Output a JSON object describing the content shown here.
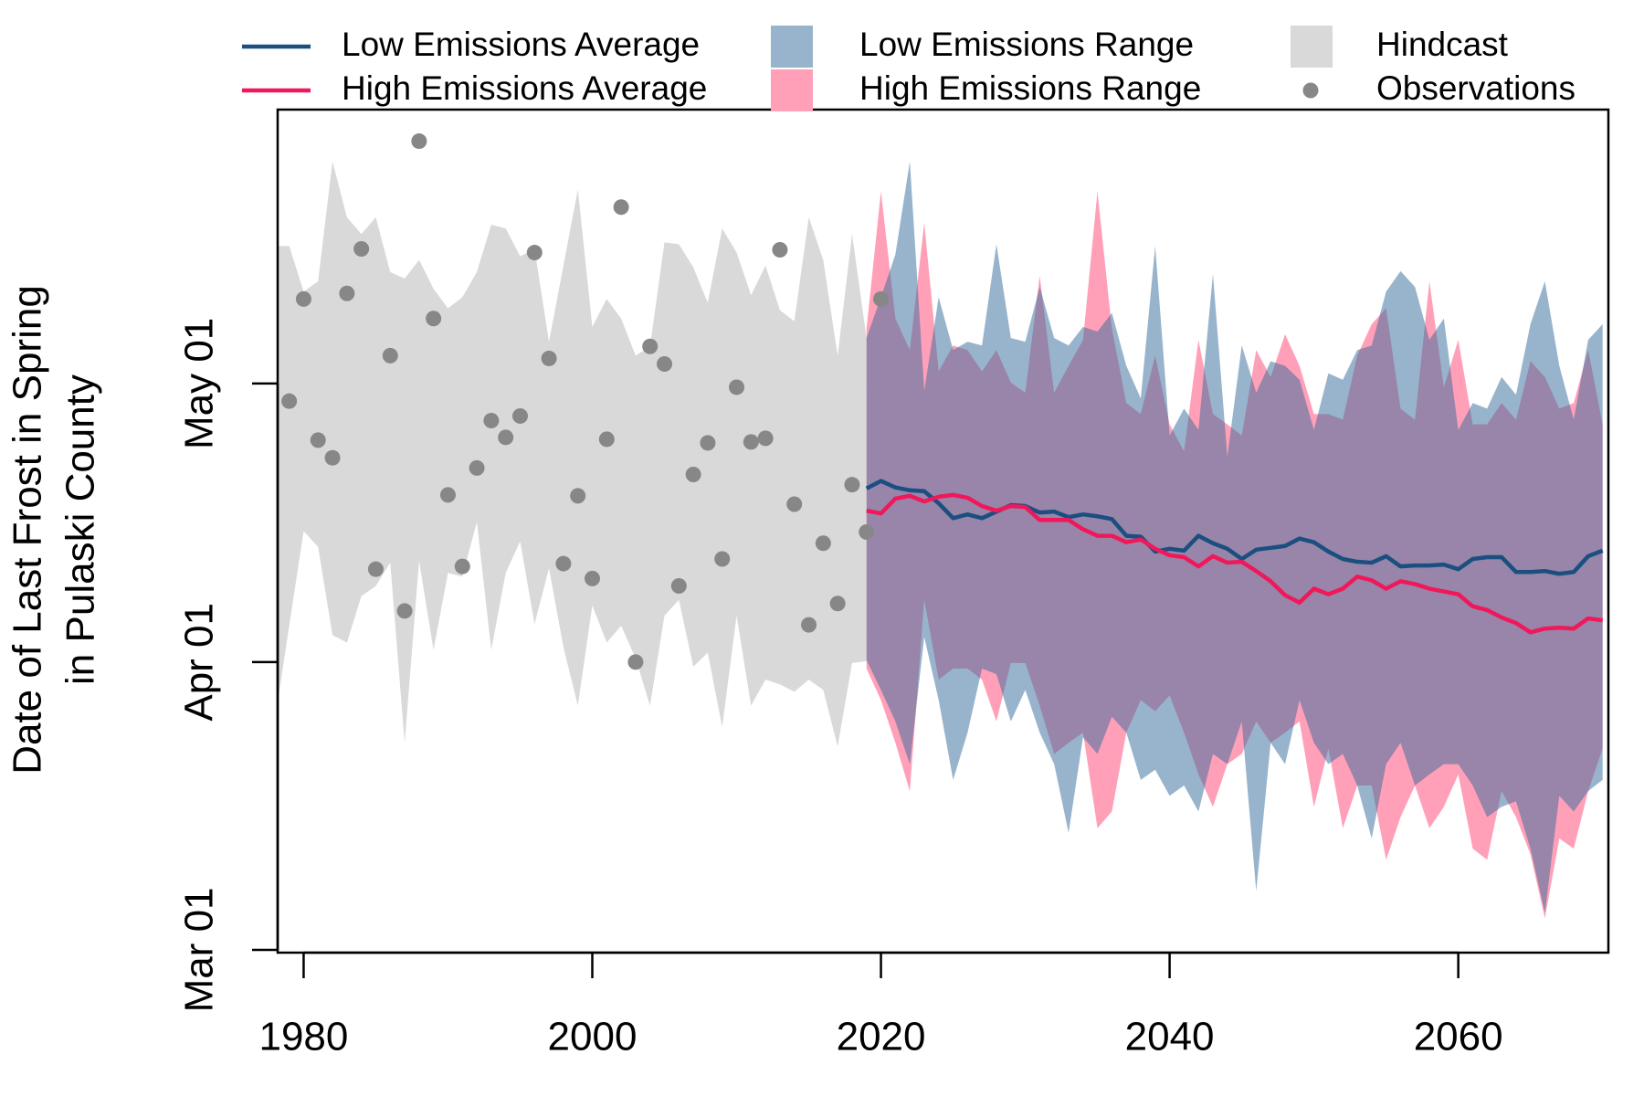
{
  "chart_data": {
    "type": "line",
    "ylabel": [
      "Date of Last Frost in Spring",
      "in Pulaski County"
    ],
    "xlim": [
      1978.2,
      2070.4
    ],
    "ylim": [
      59.7,
      150.5
    ],
    "xticks": [
      1980,
      2000,
      2020,
      2040,
      2060
    ],
    "yticks": [
      {
        "value": 60,
        "label": "Mar 01"
      },
      {
        "value": 91,
        "label": "Apr 01"
      },
      {
        "value": 121,
        "label": "May 01"
      }
    ],
    "series": [
      {
        "name": "Low Emissions Average",
        "style": "line",
        "color": "#1a4f80",
        "x": [
          2019,
          2020,
          2021,
          2022,
          2023,
          2024,
          2025,
          2026,
          2027,
          2028,
          2029,
          2030,
          2031,
          2032,
          2033,
          2034,
          2035,
          2036,
          2037,
          2038,
          2039,
          2040,
          2041,
          2042,
          2043,
          2044,
          2045,
          2046,
          2047,
          2048,
          2049,
          2050,
          2051,
          2052,
          2053,
          2054,
          2055,
          2056,
          2057,
          2058,
          2059,
          2060,
          2061,
          2062,
          2063,
          2064,
          2065,
          2066,
          2067,
          2068,
          2069,
          2070
        ],
        "values": [
          109.7,
          110.5,
          109.8,
          109.5,
          109.4,
          108.1,
          106.5,
          106.9,
          106.5,
          107.2,
          107.9,
          107.8,
          107.1,
          107.2,
          106.6,
          106.9,
          106.7,
          106.4,
          104.6,
          104.5,
          102.9,
          103.2,
          103.0,
          104.6,
          103.8,
          103.2,
          102.1,
          103.1,
          103.3,
          103.5,
          104.3,
          103.9,
          102.9,
          102.1,
          101.8,
          101.7,
          102.4,
          101.3,
          101.4,
          101.4,
          101.5,
          101.0,
          102.1,
          102.3,
          102.3,
          100.7,
          100.7,
          100.8,
          100.5,
          100.7,
          102.4,
          103.0
        ]
      },
      {
        "name": "High Emissions Average",
        "style": "line",
        "color": "#f0185a",
        "x": [
          2019,
          2020,
          2021,
          2022,
          2023,
          2024,
          2025,
          2026,
          2027,
          2028,
          2029,
          2030,
          2031,
          2032,
          2033,
          2034,
          2035,
          2036,
          2037,
          2038,
          2039,
          2040,
          2041,
          2042,
          2043,
          2044,
          2045,
          2046,
          2047,
          2048,
          2049,
          2050,
          2051,
          2052,
          2053,
          2054,
          2055,
          2056,
          2057,
          2058,
          2059,
          2060,
          2061,
          2062,
          2063,
          2064,
          2065,
          2066,
          2067,
          2068,
          2069,
          2070
        ],
        "values": [
          107.3,
          107.0,
          108.6,
          108.9,
          108.3,
          108.8,
          109.0,
          108.7,
          107.8,
          107.3,
          107.8,
          107.7,
          106.3,
          106.3,
          106.3,
          105.3,
          104.6,
          104.6,
          103.9,
          104.2,
          103.2,
          102.5,
          102.3,
          101.3,
          102.4,
          101.7,
          101.8,
          100.8,
          99.7,
          98.2,
          97.4,
          98.9,
          98.3,
          98.9,
          100.2,
          99.8,
          98.9,
          99.7,
          99.4,
          98.9,
          98.6,
          98.3,
          97.0,
          96.6,
          95.8,
          95.2,
          94.2,
          94.6,
          94.7,
          94.6,
          95.7,
          95.5
        ]
      },
      {
        "name": "Low Emissions Range",
        "style": "band",
        "color": "#316a99",
        "opacity": 0.5,
        "x": [
          2019,
          2020,
          2021,
          2022,
          2023,
          2024,
          2025,
          2026,
          2027,
          2028,
          2029,
          2030,
          2031,
          2032,
          2033,
          2034,
          2035,
          2036,
          2037,
          2038,
          2039,
          2040,
          2041,
          2042,
          2043,
          2044,
          2045,
          2046,
          2047,
          2048,
          2049,
          2050,
          2051,
          2052,
          2053,
          2054,
          2055,
          2056,
          2057,
          2058,
          2059,
          2060,
          2061,
          2062,
          2063,
          2064,
          2065,
          2066,
          2067,
          2068,
          2069,
          2070
        ],
        "upper": [
          125.9,
          130.3,
          134.9,
          144.9,
          120.2,
          130.3,
          124.6,
          125.5,
          125.1,
          136.0,
          125.9,
          125.5,
          131.4,
          125.9,
          125.1,
          127.1,
          126.6,
          128.6,
          122.9,
          119.4,
          135.8,
          115.4,
          118.3,
          116.0,
          132.8,
          113.1,
          125.1,
          120.0,
          123.4,
          122.9,
          121.4,
          116.0,
          122.1,
          121.4,
          124.6,
          125.1,
          130.9,
          133.1,
          131.4,
          125.7,
          128.0,
          116.0,
          118.9,
          118.3,
          121.7,
          119.8,
          127.4,
          132.0,
          122.9,
          117.1,
          125.7,
          127.4
        ],
        "lower": [
          91.2,
          88.0,
          84.6,
          80.0,
          93.7,
          86.9,
          78.3,
          83.4,
          90.3,
          89.7,
          84.6,
          88.0,
          83.4,
          80.0,
          72.6,
          82.9,
          81.1,
          85.1,
          83.4,
          78.3,
          79.4,
          76.6,
          77.7,
          74.9,
          81.1,
          80.0,
          84.6,
          66.3,
          82.3,
          80.0,
          86.9,
          82.3,
          80.0,
          81.1,
          77.7,
          72.0,
          80.0,
          82.3,
          77.7,
          78.9,
          80.0,
          80.0,
          77.7,
          74.3,
          75.4,
          76.0,
          70.9,
          64.0,
          76.6,
          74.9,
          77.1,
          78.3
        ]
      },
      {
        "name": "High Emissions Range",
        "style": "band",
        "color": "#ffa0b8",
        "opacity": 1,
        "x": [
          2019,
          2020,
          2021,
          2022,
          2023,
          2024,
          2025,
          2026,
          2027,
          2028,
          2029,
          2030,
          2031,
          2032,
          2033,
          2034,
          2035,
          2036,
          2037,
          2038,
          2039,
          2040,
          2041,
          2042,
          2043,
          2044,
          2045,
          2046,
          2047,
          2048,
          2049,
          2050,
          2051,
          2052,
          2053,
          2054,
          2055,
          2056,
          2057,
          2058,
          2059,
          2060,
          2061,
          2062,
          2063,
          2064,
          2065,
          2066,
          2067,
          2068,
          2069,
          2070
        ],
        "upper": [
          126.9,
          141.7,
          128.0,
          124.6,
          138.3,
          122.3,
          125.1,
          124.6,
          122.3,
          124.6,
          121.1,
          120.0,
          132.6,
          120.0,
          122.9,
          125.7,
          141.7,
          126.9,
          118.9,
          117.7,
          124.0,
          116.6,
          113.7,
          125.7,
          117.7,
          116.6,
          115.4,
          124.6,
          121.7,
          126.3,
          122.9,
          117.7,
          117.7,
          117.1,
          124.0,
          127.4,
          129.1,
          118.3,
          117.1,
          132.0,
          120.6,
          125.7,
          116.6,
          116.6,
          118.9,
          117.1,
          123.4,
          121.7,
          118.3,
          118.9,
          124.6,
          116.6
        ],
        "lower": [
          90.3,
          86.9,
          82.3,
          77.1,
          97.7,
          89.1,
          90.3,
          90.3,
          89.1,
          84.6,
          90.9,
          90.9,
          86.3,
          81.1,
          82.3,
          83.4,
          73.1,
          74.9,
          83.4,
          86.9,
          85.7,
          87.4,
          83.4,
          78.9,
          75.4,
          80.0,
          81.1,
          84.6,
          82.3,
          83.4,
          84.6,
          75.4,
          81.7,
          73.1,
          77.7,
          77.7,
          69.7,
          74.3,
          77.7,
          73.1,
          75.4,
          78.9,
          70.9,
          69.7,
          77.1,
          74.3,
          70.3,
          63.4,
          72.0,
          70.9,
          77.1,
          81.7
        ]
      },
      {
        "name": "Hindcast",
        "style": "band",
        "color": "#d9d9d9",
        "opacity": 1,
        "x": [
          1978,
          1979,
          1980,
          1981,
          1982,
          1983,
          1984,
          1985,
          1986,
          1987,
          1988,
          1989,
          1990,
          1991,
          1992,
          1993,
          1994,
          1995,
          1996,
          1997,
          1998,
          1999,
          2000,
          2001,
          2002,
          2003,
          2004,
          2005,
          2006,
          2007,
          2008,
          2009,
          2010,
          2011,
          2012,
          2013,
          2014,
          2015,
          2016,
          2017,
          2018,
          2019
        ],
        "upper": [
          135.8,
          135.8,
          130.9,
          132.0,
          144.9,
          138.9,
          137.1,
          138.9,
          133.0,
          132.3,
          134.3,
          131.2,
          129.1,
          130.3,
          133.0,
          138.1,
          137.7,
          134.7,
          135.5,
          125.5,
          133.7,
          141.9,
          127.1,
          130.1,
          128.0,
          124.0,
          125.0,
          136.2,
          136.0,
          133.5,
          129.7,
          137.7,
          135.1,
          130.5,
          133.7,
          128.9,
          127.7,
          138.9,
          134.3,
          124.0,
          137.1,
          125.9
        ],
        "lower": [
          84.6,
          94.9,
          105.1,
          103.4,
          93.9,
          93.1,
          98.1,
          99.2,
          101.7,
          82.3,
          101.9,
          92.3,
          100.6,
          100.2,
          106.1,
          92.3,
          100.6,
          104.0,
          95.1,
          101.1,
          92.6,
          86.3,
          97.1,
          93.1,
          94.9,
          91.4,
          86.3,
          96.0,
          97.7,
          90.5,
          92.0,
          84.0,
          96.0,
          86.3,
          89.1,
          88.6,
          87.8,
          89.1,
          88.0,
          81.9,
          90.9,
          91.1
        ]
      },
      {
        "name": "Observations",
        "style": "points",
        "color": "#878787",
        "x": [
          1979,
          1980,
          1981,
          1982,
          1983,
          1984,
          1985,
          1986,
          1987,
          1988,
          1989,
          1990,
          1991,
          1992,
          1993,
          1994,
          1995,
          1996,
          1997,
          1998,
          1999,
          2000,
          2001,
          2002,
          2003,
          2004,
          2005,
          2006,
          2007,
          2008,
          2009,
          2010,
          2011,
          2012,
          2013,
          2014,
          2015,
          2016,
          2017,
          2018,
          2019,
          2020
        ],
        "values": [
          119.1,
          130.1,
          114.9,
          113.0,
          130.7,
          135.5,
          101.0,
          124.0,
          96.5,
          147.1,
          128.0,
          109.0,
          101.3,
          111.9,
          117.0,
          115.2,
          117.5,
          135.1,
          123.7,
          101.6,
          108.9,
          100.0,
          115.0,
          140.0,
          91.0,
          125.0,
          123.1,
          99.2,
          111.2,
          114.6,
          102.1,
          120.6,
          114.7,
          115.1,
          135.4,
          108.0,
          95.0,
          103.8,
          97.3,
          110.1,
          105.0,
          130.1
        ]
      }
    ]
  }
}
